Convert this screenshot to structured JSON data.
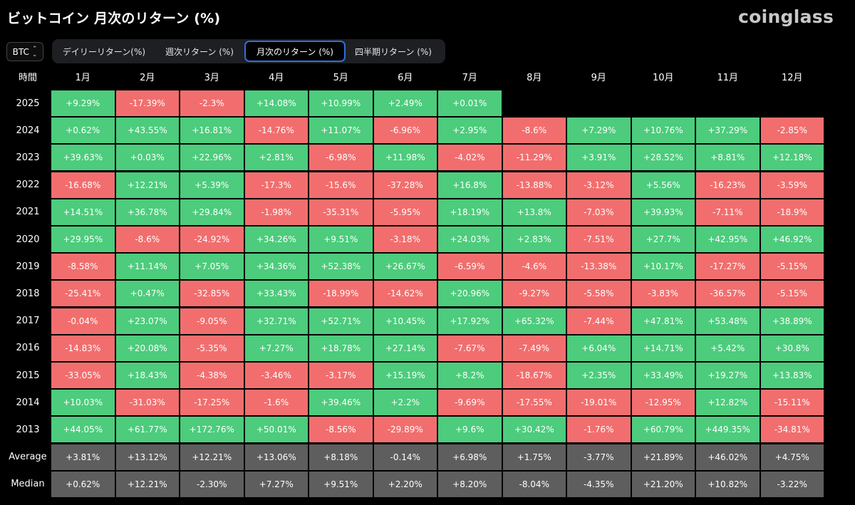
{
  "header": {
    "title": "ビットコイン 月次のリターン (%)",
    "logo": "coinglass"
  },
  "coin_select": {
    "value": "BTC"
  },
  "tabs": [
    {
      "label": "デイリーリターン(%)",
      "active": false
    },
    {
      "label": "週次リターン (%)",
      "active": false
    },
    {
      "label": "月次のリターン (%)",
      "active": true
    },
    {
      "label": "四半期リターン (%)",
      "active": false
    }
  ],
  "colors": {
    "positive": "#4ccc7c",
    "negative": "#f26e6e",
    "summary": "#5e5e5e",
    "active_tab_border": "#2f6fdc"
  },
  "chart_data": {
    "type": "table",
    "corner_label": "時間",
    "columns": [
      "1月",
      "2月",
      "3月",
      "4月",
      "5月",
      "6月",
      "7月",
      "8月",
      "9月",
      "10月",
      "11月",
      "12月"
    ],
    "rows": [
      {
        "label": "2025",
        "values": [
          "+9.29%",
          "-17.39%",
          "-2.3%",
          "+14.08%",
          "+10.99%",
          "+2.49%",
          "+0.01%",
          "",
          "",
          "",
          "",
          ""
        ]
      },
      {
        "label": "2024",
        "values": [
          "+0.62%",
          "+43.55%",
          "+16.81%",
          "-14.76%",
          "+11.07%",
          "-6.96%",
          "+2.95%",
          "-8.6%",
          "+7.29%",
          "+10.76%",
          "+37.29%",
          "-2.85%"
        ]
      },
      {
        "label": "2023",
        "values": [
          "+39.63%",
          "+0.03%",
          "+22.96%",
          "+2.81%",
          "-6.98%",
          "+11.98%",
          "-4.02%",
          "-11.29%",
          "+3.91%",
          "+28.52%",
          "+8.81%",
          "+12.18%"
        ]
      },
      {
        "label": "2022",
        "values": [
          "-16.68%",
          "+12.21%",
          "+5.39%",
          "-17.3%",
          "-15.6%",
          "-37.28%",
          "+16.8%",
          "-13.88%",
          "-3.12%",
          "+5.56%",
          "-16.23%",
          "-3.59%"
        ]
      },
      {
        "label": "2021",
        "values": [
          "+14.51%",
          "+36.78%",
          "+29.84%",
          "-1.98%",
          "-35.31%",
          "-5.95%",
          "+18.19%",
          "+13.8%",
          "-7.03%",
          "+39.93%",
          "-7.11%",
          "-18.9%"
        ]
      },
      {
        "label": "2020",
        "values": [
          "+29.95%",
          "-8.6%",
          "-24.92%",
          "+34.26%",
          "+9.51%",
          "-3.18%",
          "+24.03%",
          "+2.83%",
          "-7.51%",
          "+27.7%",
          "+42.95%",
          "+46.92%"
        ]
      },
      {
        "label": "2019",
        "values": [
          "-8.58%",
          "+11.14%",
          "+7.05%",
          "+34.36%",
          "+52.38%",
          "+26.67%",
          "-6.59%",
          "-4.6%",
          "-13.38%",
          "+10.17%",
          "-17.27%",
          "-5.15%"
        ]
      },
      {
        "label": "2018",
        "values": [
          "-25.41%",
          "+0.47%",
          "-32.85%",
          "+33.43%",
          "-18.99%",
          "-14.62%",
          "+20.96%",
          "-9.27%",
          "-5.58%",
          "-3.83%",
          "-36.57%",
          "-5.15%"
        ]
      },
      {
        "label": "2017",
        "values": [
          "-0.04%",
          "+23.07%",
          "-9.05%",
          "+32.71%",
          "+52.71%",
          "+10.45%",
          "+17.92%",
          "+65.32%",
          "-7.44%",
          "+47.81%",
          "+53.48%",
          "+38.89%"
        ]
      },
      {
        "label": "2016",
        "values": [
          "-14.83%",
          "+20.08%",
          "-5.35%",
          "+7.27%",
          "+18.78%",
          "+27.14%",
          "-7.67%",
          "-7.49%",
          "+6.04%",
          "+14.71%",
          "+5.42%",
          "+30.8%"
        ]
      },
      {
        "label": "2015",
        "values": [
          "-33.05%",
          "+18.43%",
          "-4.38%",
          "-3.46%",
          "-3.17%",
          "+15.19%",
          "+8.2%",
          "-18.67%",
          "+2.35%",
          "+33.49%",
          "+19.27%",
          "+13.83%"
        ]
      },
      {
        "label": "2014",
        "values": [
          "+10.03%",
          "-31.03%",
          "-17.25%",
          "-1.6%",
          "+39.46%",
          "+2.2%",
          "-9.69%",
          "-17.55%",
          "-19.01%",
          "-12.95%",
          "+12.82%",
          "-15.11%"
        ]
      },
      {
        "label": "2013",
        "values": [
          "+44.05%",
          "+61.77%",
          "+172.76%",
          "+50.01%",
          "-8.56%",
          "-29.89%",
          "+9.6%",
          "+30.42%",
          "-1.76%",
          "+60.79%",
          "+449.35%",
          "-34.81%"
        ]
      }
    ],
    "summary_rows": [
      {
        "label": "Average",
        "values": [
          "+3.81%",
          "+13.12%",
          "+12.21%",
          "+13.06%",
          "+8.18%",
          "-0.14%",
          "+6.98%",
          "+1.75%",
          "-3.77%",
          "+21.89%",
          "+46.02%",
          "+4.75%"
        ]
      },
      {
        "label": "Median",
        "values": [
          "+0.62%",
          "+12.21%",
          "-2.30%",
          "+7.27%",
          "+9.51%",
          "+2.20%",
          "+8.20%",
          "-8.04%",
          "-4.35%",
          "+21.20%",
          "+10.82%",
          "-3.22%"
        ]
      }
    ]
  }
}
